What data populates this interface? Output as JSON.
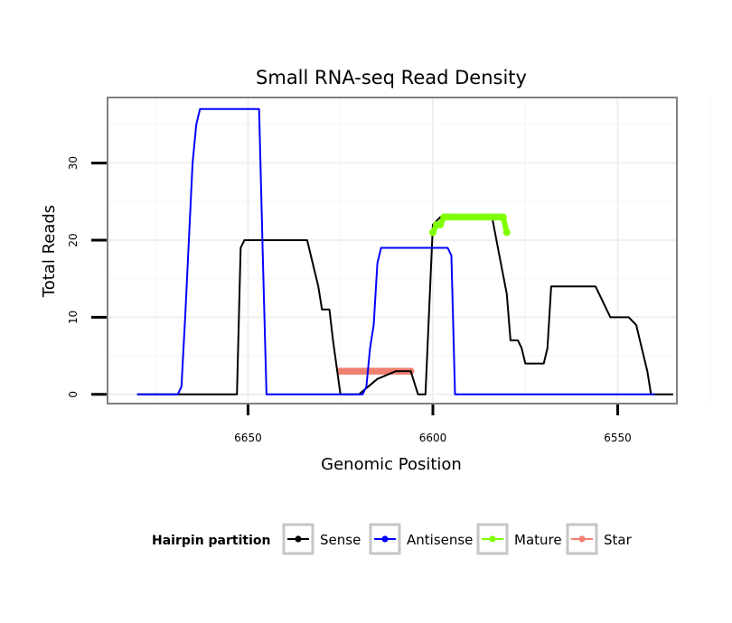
{
  "chart_data": {
    "type": "line",
    "title": "Small RNA-seq Read Density",
    "xlabel": "Genomic Position",
    "ylabel": "Total Reads",
    "x_reversed": true,
    "xlim": [
      6534,
      6688
    ],
    "ylim": [
      -1.2,
      38.5
    ],
    "x_ticks": [
      6650,
      6600,
      6550
    ],
    "y_ticks": [
      0,
      10,
      20,
      30
    ],
    "grid": true,
    "legend_title": "Hairpin partition",
    "legend_position": "bottom",
    "series": [
      {
        "name": "Sense",
        "color": "#000000",
        "kind": "line",
        "points": [
          [
            6680,
            0
          ],
          [
            6676,
            0
          ],
          [
            6671,
            0
          ],
          [
            6664,
            0
          ],
          [
            6653,
            0
          ],
          [
            6652,
            19
          ],
          [
            6651,
            20
          ],
          [
            6646,
            20
          ],
          [
            6640,
            20
          ],
          [
            6634,
            20
          ],
          [
            6632,
            16
          ],
          [
            6631,
            14
          ],
          [
            6630,
            11
          ],
          [
            6628,
            11
          ],
          [
            6627,
            7
          ],
          [
            6625,
            0
          ],
          [
            6620,
            0
          ],
          [
            6615,
            2
          ],
          [
            6610,
            3
          ],
          [
            6608,
            3
          ],
          [
            6606,
            3
          ],
          [
            6604,
            0
          ],
          [
            6602,
            0
          ],
          [
            6600,
            22
          ],
          [
            6598,
            23
          ],
          [
            6594,
            23
          ],
          [
            6588,
            23
          ],
          [
            6584,
            23
          ],
          [
            6582,
            18
          ],
          [
            6580,
            13
          ],
          [
            6579,
            7
          ],
          [
            6577,
            7
          ],
          [
            6576,
            6
          ],
          [
            6575,
            4
          ],
          [
            6570,
            4
          ],
          [
            6569,
            6
          ],
          [
            6568,
            14
          ],
          [
            6562,
            14
          ],
          [
            6556,
            14
          ],
          [
            6552,
            10
          ],
          [
            6547,
            10
          ],
          [
            6545,
            9
          ],
          [
            6544,
            7
          ],
          [
            6542,
            3
          ],
          [
            6541,
            0
          ],
          [
            6538,
            0
          ],
          [
            6535,
            0
          ]
        ]
      },
      {
        "name": "Antisense",
        "color": "#0000ff",
        "kind": "line",
        "points": [
          [
            6680,
            0
          ],
          [
            6676,
            0
          ],
          [
            6669,
            0
          ],
          [
            6668,
            1
          ],
          [
            6667,
            10
          ],
          [
            6666,
            20
          ],
          [
            6665,
            30
          ],
          [
            6664,
            35
          ],
          [
            6663,
            37
          ],
          [
            6660,
            37
          ],
          [
            6654,
            37
          ],
          [
            6649,
            37
          ],
          [
            6647,
            37
          ],
          [
            6646,
            18
          ],
          [
            6645,
            0
          ],
          [
            6640,
            0
          ],
          [
            6630,
            0
          ],
          [
            6621,
            0
          ],
          [
            6619,
            0
          ],
          [
            6618,
            1
          ],
          [
            6617,
            6
          ],
          [
            6616,
            9
          ],
          [
            6615,
            17
          ],
          [
            6614,
            19
          ],
          [
            6608,
            19
          ],
          [
            6602,
            19
          ],
          [
            6596,
            19
          ],
          [
            6595,
            18
          ],
          [
            6594,
            0
          ],
          [
            6590,
            0
          ],
          [
            6580,
            0
          ],
          [
            6570,
            0
          ],
          [
            6560,
            0
          ],
          [
            6550,
            0
          ],
          [
            6542,
            0
          ],
          [
            6540,
            0
          ]
        ]
      },
      {
        "name": "Mature",
        "color": "#7fff00",
        "kind": "points",
        "points": [
          [
            6600,
            21
          ],
          [
            6599,
            22
          ],
          [
            6598,
            22
          ],
          [
            6597,
            23
          ],
          [
            6596,
            23
          ],
          [
            6595,
            23
          ],
          [
            6594,
            23
          ],
          [
            6593,
            23
          ],
          [
            6592,
            23
          ],
          [
            6591,
            23
          ],
          [
            6590,
            23
          ],
          [
            6589,
            23
          ],
          [
            6588,
            23
          ],
          [
            6587,
            23
          ],
          [
            6586,
            23
          ],
          [
            6585,
            23
          ],
          [
            6584,
            23
          ],
          [
            6583,
            23
          ],
          [
            6582,
            23
          ],
          [
            6581,
            23
          ],
          [
            6580,
            21
          ]
        ]
      },
      {
        "name": "Star",
        "color": "#f08070",
        "kind": "points",
        "points": [
          [
            6625,
            3
          ],
          [
            6624,
            3
          ],
          [
            6623,
            3
          ],
          [
            6622,
            3
          ],
          [
            6621,
            3
          ],
          [
            6620,
            3
          ],
          [
            6619,
            3
          ],
          [
            6618,
            3
          ],
          [
            6617,
            3
          ],
          [
            6616,
            3
          ],
          [
            6615,
            3
          ],
          [
            6614,
            3
          ],
          [
            6613,
            3
          ],
          [
            6612,
            3
          ],
          [
            6611,
            3
          ],
          [
            6610,
            3
          ],
          [
            6609,
            3
          ],
          [
            6608,
            3
          ],
          [
            6607,
            3
          ],
          [
            6606,
            3
          ]
        ]
      }
    ]
  }
}
